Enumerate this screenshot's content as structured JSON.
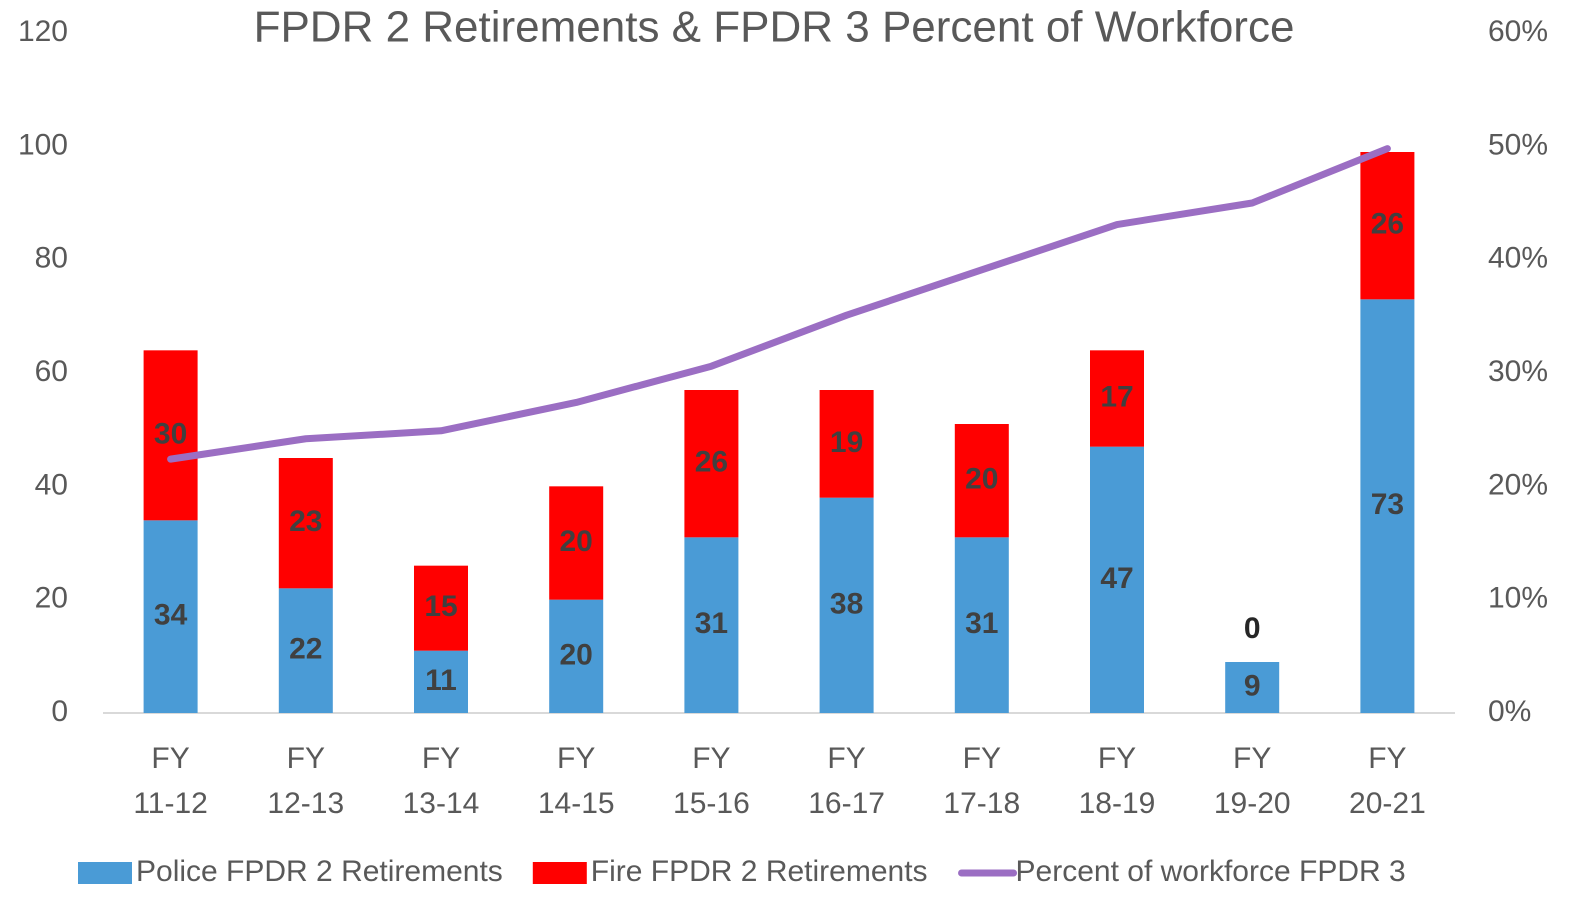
{
  "chart_data": {
    "type": "bar",
    "title": "FPDR 2 Retirements & FPDR 3 Percent of Workforce",
    "categories": [
      "FY 11-12",
      "FY 12-13",
      "FY 13-14",
      "FY 14-15",
      "FY 15-16",
      "FY 16-17",
      "FY 17-18",
      "FY 18-19",
      "FY 19-20",
      "FY 20-21"
    ],
    "series": [
      {
        "name": "Police FPDR 2 Retirements",
        "color": "#4a9bd6",
        "type": "bar",
        "values": [
          34,
          22,
          11,
          20,
          31,
          38,
          31,
          47,
          9,
          73
        ]
      },
      {
        "name": "Fire FPDR 2 Retirements",
        "color": "#ff0000",
        "type": "bar",
        "values": [
          30,
          23,
          15,
          20,
          26,
          19,
          20,
          17,
          0,
          26
        ]
      },
      {
        "name": "Percent of workforce FPDR 3",
        "color": "#9b6ec3",
        "type": "line",
        "axis": "y2",
        "values": [
          22.4,
          24.2,
          24.9,
          27.4,
          30.6,
          35.1,
          39.1,
          43.1,
          45,
          49.8
        ]
      }
    ],
    "stacked": true,
    "ylim": [
      0,
      120
    ],
    "yticks": [
      0,
      20,
      40,
      60,
      80,
      100,
      120
    ],
    "y2lim": [
      0,
      60
    ],
    "y2ticks": [
      {
        "value": 0,
        "label": "0%"
      },
      {
        "value": 10,
        "label": "10%"
      },
      {
        "value": 20,
        "label": "20%"
      },
      {
        "value": 30,
        "label": "30%"
      },
      {
        "value": 40,
        "label": "40%"
      },
      {
        "value": 50,
        "label": "50%"
      },
      {
        "value": 60,
        "label": "60%"
      }
    ],
    "legend": "bottom"
  }
}
